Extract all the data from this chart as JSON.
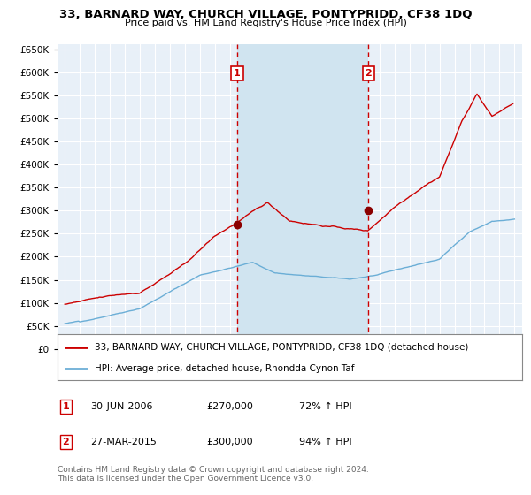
{
  "title": "33, BARNARD WAY, CHURCH VILLAGE, PONTYPRIDD, CF38 1DQ",
  "subtitle": "Price paid vs. HM Land Registry's House Price Index (HPI)",
  "legend_line1": "33, BARNARD WAY, CHURCH VILLAGE, PONTYPRIDD, CF38 1DQ (detached house)",
  "legend_line2": "HPI: Average price, detached house, Rhondda Cynon Taf",
  "annotation1_label": "1",
  "annotation1_date": "30-JUN-2006",
  "annotation1_price": "£270,000",
  "annotation1_hpi": "72% ↑ HPI",
  "annotation2_label": "2",
  "annotation2_date": "27-MAR-2015",
  "annotation2_price": "£300,000",
  "annotation2_hpi": "94% ↑ HPI",
  "footer": "Contains HM Land Registry data © Crown copyright and database right 2024.\nThis data is licensed under the Open Government Licence v3.0.",
  "sale1_year": 2006.5,
  "sale1_price": 270000,
  "sale2_year": 2015.25,
  "sale2_price": 300000,
  "hpi_line_color": "#6baed6",
  "price_line_color": "#cc0000",
  "annotation_vline_color": "#cc0000",
  "dot_color": "#8b0000",
  "background_color": "#ffffff",
  "plot_bg_color": "#e8f0f8",
  "shaded_region_color": "#d0e4f0",
  "grid_color": "#ffffff",
  "ylim_min": 0,
  "ylim_max": 660000,
  "xmin": 1994.5,
  "xmax": 2025.5
}
